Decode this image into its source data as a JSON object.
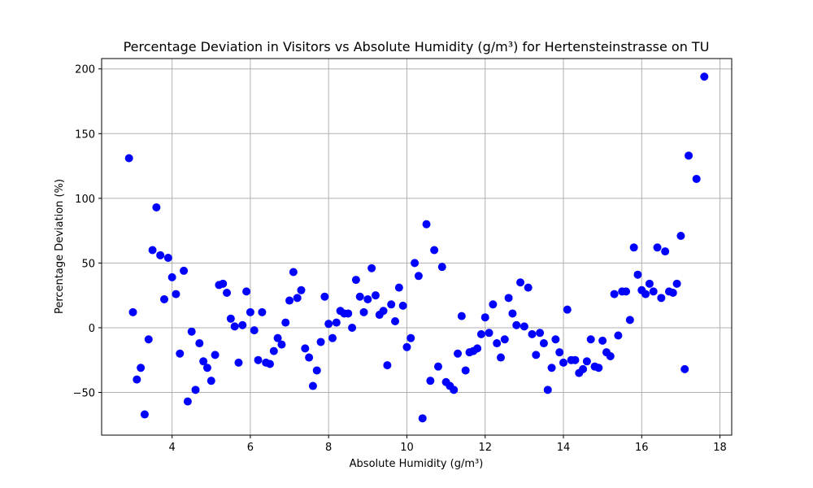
{
  "chart_data": {
    "type": "scatter",
    "title": "Percentage Deviation in Visitors vs Absolute Humidity (g/m³) for Hertensteinstrasse on TU",
    "xlabel": "Absolute Humidity (g/m³)",
    "ylabel": "Percentage Deviation (%)",
    "xlim": [
      2.2,
      18.3
    ],
    "ylim": [
      -83,
      208
    ],
    "xticks": [
      4,
      6,
      8,
      10,
      12,
      14,
      16,
      18
    ],
    "yticks": [
      -50,
      0,
      50,
      100,
      150,
      200
    ],
    "xtick_labels": [
      "4",
      "6",
      "8",
      "10",
      "12",
      "14",
      "16",
      "18"
    ],
    "ytick_labels": [
      "−50",
      "0",
      "50",
      "100",
      "150",
      "200"
    ],
    "grid": true,
    "marker_color": "#0000ff",
    "points": [
      [
        2.9,
        131
      ],
      [
        3.0,
        12
      ],
      [
        3.1,
        -40
      ],
      [
        3.2,
        -31
      ],
      [
        3.3,
        -67
      ],
      [
        3.4,
        -9
      ],
      [
        3.5,
        60
      ],
      [
        3.6,
        93
      ],
      [
        3.7,
        56
      ],
      [
        3.8,
        22
      ],
      [
        3.9,
        54
      ],
      [
        4.0,
        39
      ],
      [
        4.1,
        26
      ],
      [
        4.2,
        -20
      ],
      [
        4.3,
        44
      ],
      [
        4.4,
        -57
      ],
      [
        4.5,
        -3
      ],
      [
        4.6,
        -48
      ],
      [
        4.7,
        -12
      ],
      [
        4.8,
        -26
      ],
      [
        4.9,
        -31
      ],
      [
        5.0,
        -41
      ],
      [
        5.1,
        -21
      ],
      [
        5.2,
        33
      ],
      [
        5.3,
        34
      ],
      [
        5.4,
        27
      ],
      [
        5.5,
        7
      ],
      [
        5.6,
        1
      ],
      [
        5.7,
        -27
      ],
      [
        5.8,
        2
      ],
      [
        5.9,
        28
      ],
      [
        6.0,
        12
      ],
      [
        6.1,
        -2
      ],
      [
        6.2,
        -25
      ],
      [
        6.3,
        12
      ],
      [
        6.4,
        -27
      ],
      [
        6.5,
        -28
      ],
      [
        6.6,
        -18
      ],
      [
        6.7,
        -8
      ],
      [
        6.8,
        -13
      ],
      [
        6.9,
        4
      ],
      [
        7.0,
        21
      ],
      [
        7.1,
        43
      ],
      [
        7.2,
        23
      ],
      [
        7.3,
        29
      ],
      [
        7.4,
        -16
      ],
      [
        7.5,
        -23
      ],
      [
        7.6,
        -45
      ],
      [
        7.7,
        -33
      ],
      [
        7.8,
        -11
      ],
      [
        7.9,
        24
      ],
      [
        8.0,
        3
      ],
      [
        8.1,
        -8
      ],
      [
        8.2,
        4
      ],
      [
        8.3,
        13
      ],
      [
        8.4,
        11
      ],
      [
        8.5,
        11
      ],
      [
        8.6,
        0
      ],
      [
        8.7,
        37
      ],
      [
        8.8,
        24
      ],
      [
        8.9,
        12
      ],
      [
        9.0,
        22
      ],
      [
        9.1,
        46
      ],
      [
        9.2,
        25
      ],
      [
        9.3,
        10
      ],
      [
        9.4,
        13
      ],
      [
        9.5,
        -29
      ],
      [
        9.6,
        18
      ],
      [
        9.7,
        5
      ],
      [
        9.8,
        31
      ],
      [
        9.9,
        17
      ],
      [
        10.0,
        -15
      ],
      [
        10.1,
        -8
      ],
      [
        10.2,
        50
      ],
      [
        10.3,
        40
      ],
      [
        10.4,
        -70
      ],
      [
        10.5,
        80
      ],
      [
        10.6,
        -41
      ],
      [
        10.7,
        60
      ],
      [
        10.8,
        -30
      ],
      [
        10.9,
        47
      ],
      [
        11.0,
        -42
      ],
      [
        11.1,
        -45
      ],
      [
        11.2,
        -48
      ],
      [
        11.3,
        -20
      ],
      [
        11.4,
        9
      ],
      [
        11.5,
        -33
      ],
      [
        11.6,
        -19
      ],
      [
        11.7,
        -18
      ],
      [
        11.8,
        -16
      ],
      [
        11.9,
        -5
      ],
      [
        12.0,
        8
      ],
      [
        12.1,
        -4
      ],
      [
        12.2,
        18
      ],
      [
        12.3,
        -12
      ],
      [
        12.4,
        -23
      ],
      [
        12.5,
        -9
      ],
      [
        12.6,
        23
      ],
      [
        12.7,
        11
      ],
      [
        12.8,
        2
      ],
      [
        12.9,
        35
      ],
      [
        13.0,
        1
      ],
      [
        13.1,
        31
      ],
      [
        13.2,
        -5
      ],
      [
        13.3,
        -21
      ],
      [
        13.4,
        -4
      ],
      [
        13.5,
        -12
      ],
      [
        13.6,
        -48
      ],
      [
        13.7,
        -31
      ],
      [
        13.8,
        -9
      ],
      [
        13.9,
        -19
      ],
      [
        14.0,
        -27
      ],
      [
        14.1,
        14
      ],
      [
        14.2,
        -25
      ],
      [
        14.3,
        -25
      ],
      [
        14.4,
        -35
      ],
      [
        14.5,
        -32
      ],
      [
        14.6,
        -26
      ],
      [
        14.7,
        -9
      ],
      [
        14.8,
        -30
      ],
      [
        14.9,
        -31
      ],
      [
        15.0,
        -10
      ],
      [
        15.1,
        -19
      ],
      [
        15.2,
        -22
      ],
      [
        15.3,
        26
      ],
      [
        15.4,
        -6
      ],
      [
        15.5,
        28
      ],
      [
        15.6,
        28
      ],
      [
        15.7,
        6
      ],
      [
        15.8,
        62
      ],
      [
        15.9,
        41
      ],
      [
        16.0,
        29
      ],
      [
        16.1,
        26
      ],
      [
        16.2,
        34
      ],
      [
        16.3,
        28
      ],
      [
        16.4,
        62
      ],
      [
        16.5,
        23
      ],
      [
        16.6,
        59
      ],
      [
        16.7,
        28
      ],
      [
        16.8,
        27
      ],
      [
        16.9,
        34
      ],
      [
        17.0,
        71
      ],
      [
        17.1,
        -32
      ],
      [
        17.2,
        133
      ],
      [
        17.4,
        115
      ],
      [
        17.6,
        194
      ]
    ]
  }
}
